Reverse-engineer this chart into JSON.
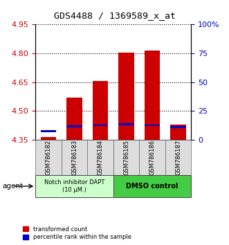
{
  "title": "GDS4488 / 1369589_x_at",
  "samples": [
    "GSM786182",
    "GSM786183",
    "GSM786184",
    "GSM786185",
    "GSM786186",
    "GSM786187"
  ],
  "red_values": [
    4.365,
    4.57,
    4.655,
    4.805,
    4.815,
    4.43
  ],
  "blue_values": [
    4.395,
    4.42,
    4.425,
    4.43,
    4.425,
    4.415
  ],
  "y_min": 4.35,
  "y_max": 4.95,
  "y_ticks_left": [
    4.35,
    4.5,
    4.65,
    4.8,
    4.95
  ],
  "y_ticks_right_labels": [
    "0",
    "25",
    "50",
    "75",
    "100%"
  ],
  "bar_width": 0.6,
  "red_color": "#cc0000",
  "blue_color": "#0000cc",
  "bar_bottom": 4.35,
  "group1_label": "Notch inhibitor DAPT\n(10 μM.)",
  "group2_label": "DMSO control",
  "group1_color": "#ccffcc",
  "group2_color": "#44cc44",
  "legend_red": "transformed count",
  "legend_blue": "percentile rank within the sample",
  "agent_label": "agent",
  "title_fontsize": 9.5,
  "tick_fontsize": 8,
  "axis_label_color_left": "#cc0000",
  "axis_label_color_right": "#0000cc",
  "bg_color": "#ffffff"
}
